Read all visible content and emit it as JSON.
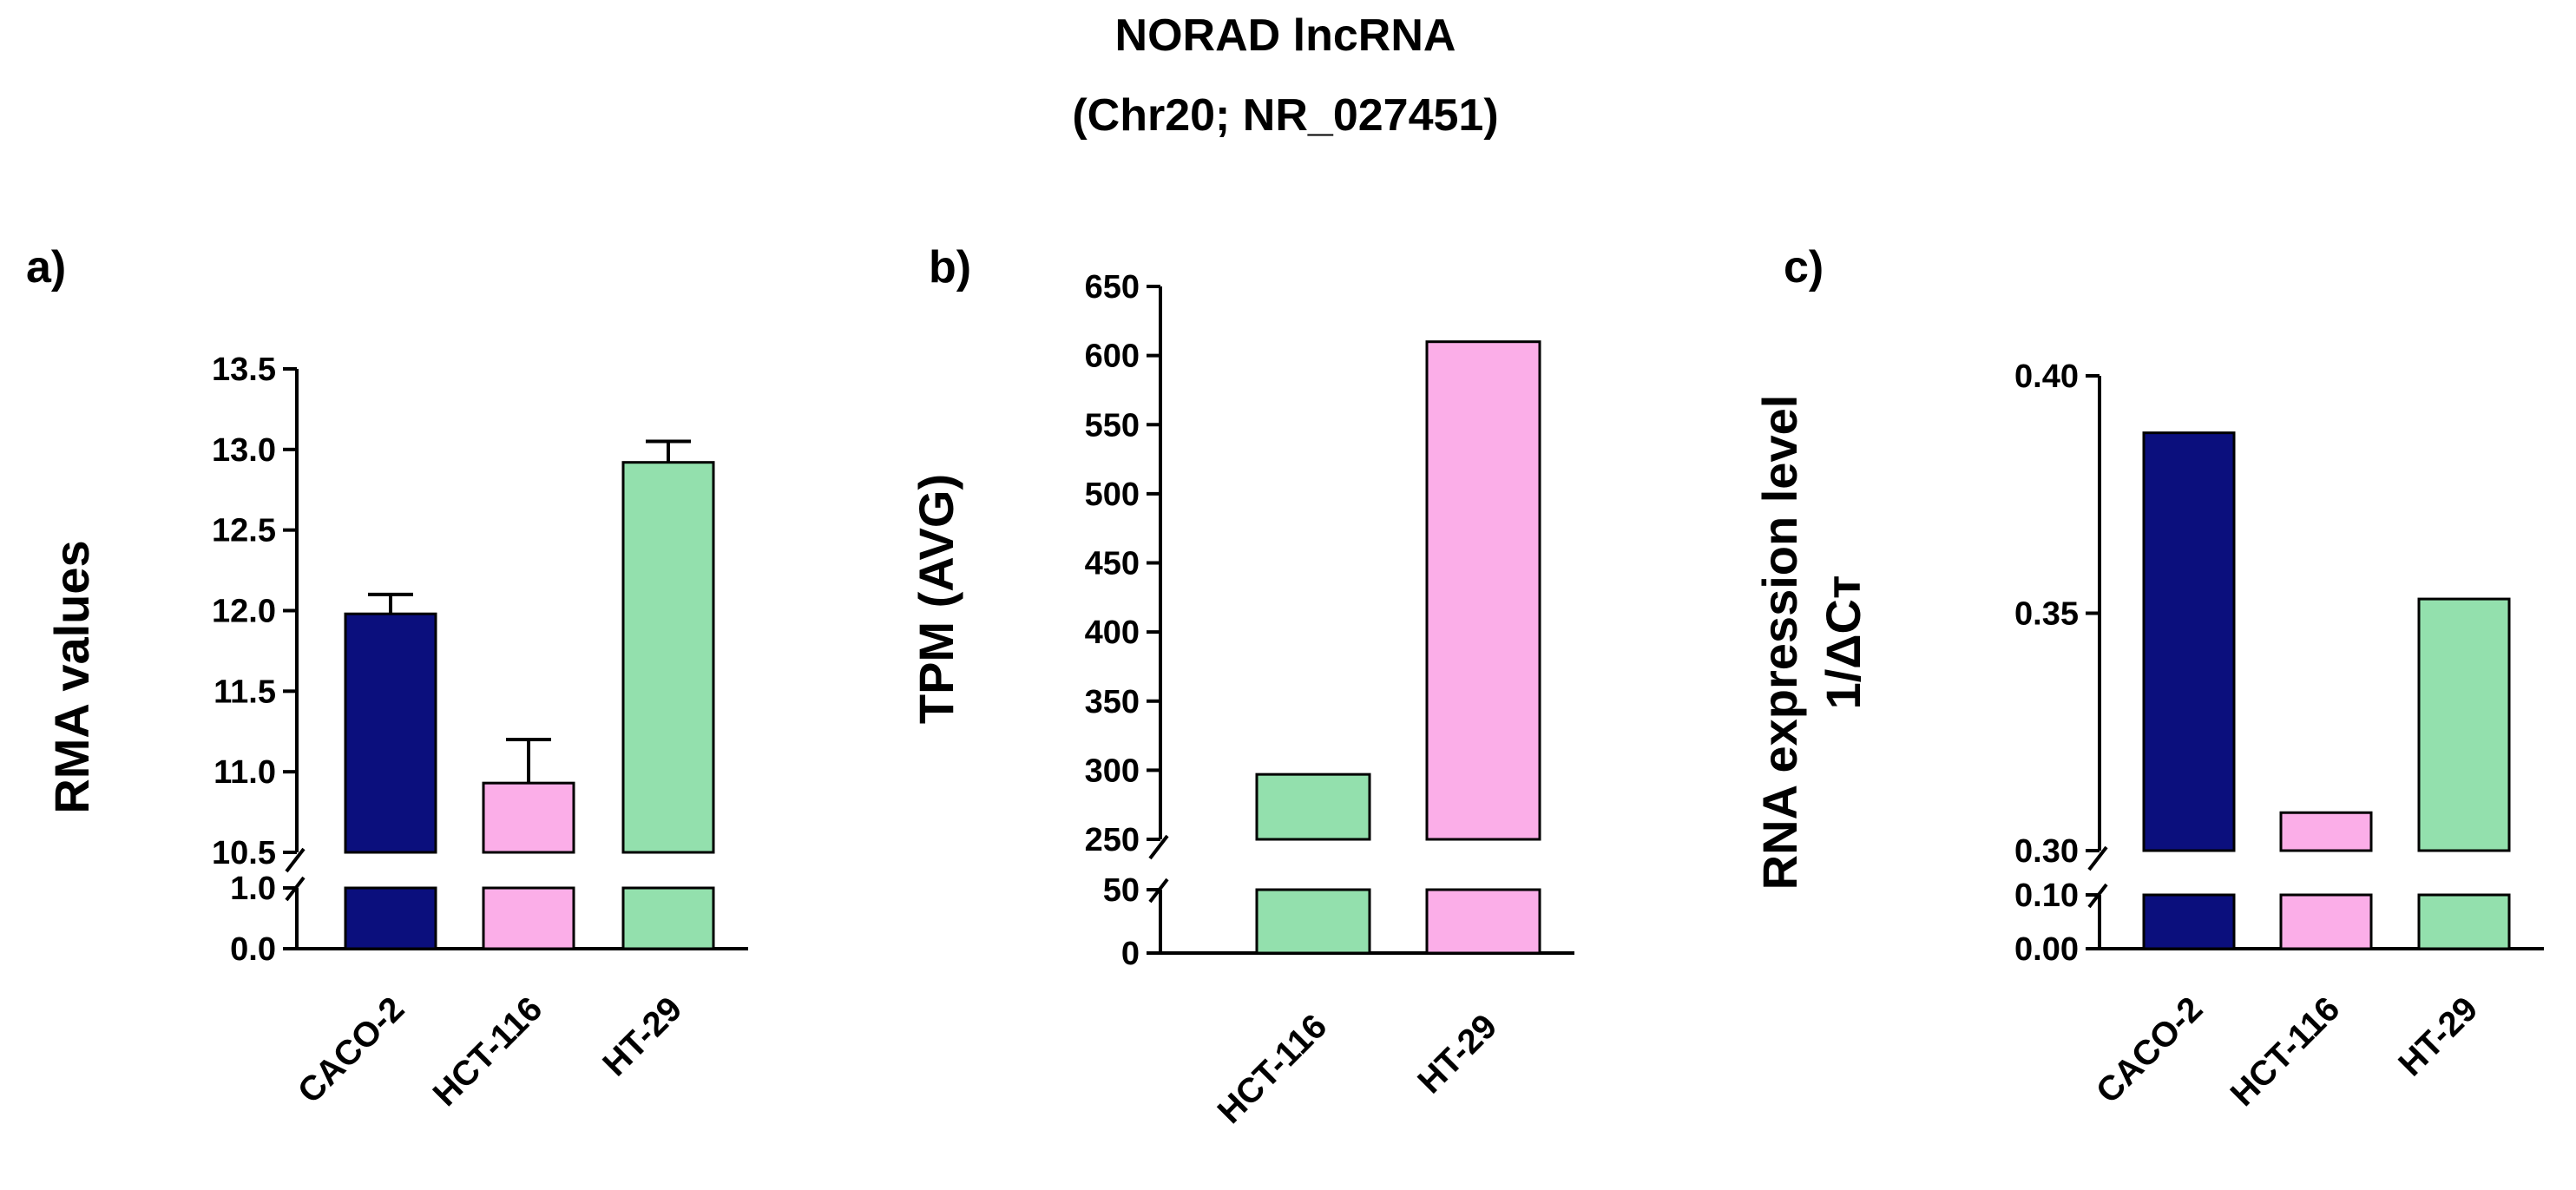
{
  "title": "NORAD lncRNA",
  "subtitle": "(Chr20; NR_027451)",
  "colors": {
    "CACO-2": "#0b0f7d",
    "HCT-116_a": "#fbaee8",
    "HT-29_a": "#93e0ad",
    "HCT-116_b": "#93e0ad",
    "HT-29_b": "#fbaee8",
    "HCT-116_c": "#fbaee8",
    "HT-29_c": "#93e0ad"
  },
  "chart_data": [
    {
      "panel": "a)",
      "type": "bar",
      "ylabel": "RMA values",
      "categories": [
        "CACO-2",
        "HCT-116",
        "HT-29"
      ],
      "values": [
        11.98,
        10.93,
        12.92
      ],
      "errors": [
        0.12,
        0.27,
        0.13
      ],
      "colors": [
        "#0b0f7d",
        "#fbaee8",
        "#93e0ad"
      ],
      "broken_axis": true,
      "lower_ticks": [
        "0.0",
        "1.0"
      ],
      "upper_ticks": [
        "10.5",
        "11.0",
        "11.5",
        "12.0",
        "12.5",
        "13.0",
        "13.5"
      ],
      "lower_range": [
        0,
        1.0
      ],
      "upper_range": [
        10.5,
        13.5
      ]
    },
    {
      "panel": "b)",
      "type": "bar",
      "ylabel": "TPM (AVG)",
      "categories": [
        "HCT-116",
        "HT-29"
      ],
      "values": [
        297,
        610
      ],
      "colors": [
        "#93e0ad",
        "#fbaee8"
      ],
      "broken_axis": true,
      "lower_ticks": [
        "0",
        "50"
      ],
      "upper_ticks": [
        "250",
        "300",
        "350",
        "400",
        "450",
        "500",
        "550",
        "600",
        "650"
      ],
      "lower_range": [
        0,
        50
      ],
      "upper_range": [
        250,
        650
      ]
    },
    {
      "panel": "c)",
      "type": "bar",
      "ylabel": "RNA expression level",
      "ylabel2": "1/ΔCт",
      "categories": [
        "CACO-2",
        "HCT-116",
        "HT-29"
      ],
      "values": [
        0.388,
        0.308,
        0.353
      ],
      "colors": [
        "#0b0f7d",
        "#fbaee8",
        "#93e0ad"
      ],
      "broken_axis": true,
      "lower_ticks": [
        "0.00",
        "0.10"
      ],
      "upper_ticks": [
        "0.30",
        "0.35",
        "0.40"
      ],
      "lower_range": [
        0,
        0.1
      ],
      "upper_range": [
        0.3,
        0.4
      ]
    }
  ]
}
